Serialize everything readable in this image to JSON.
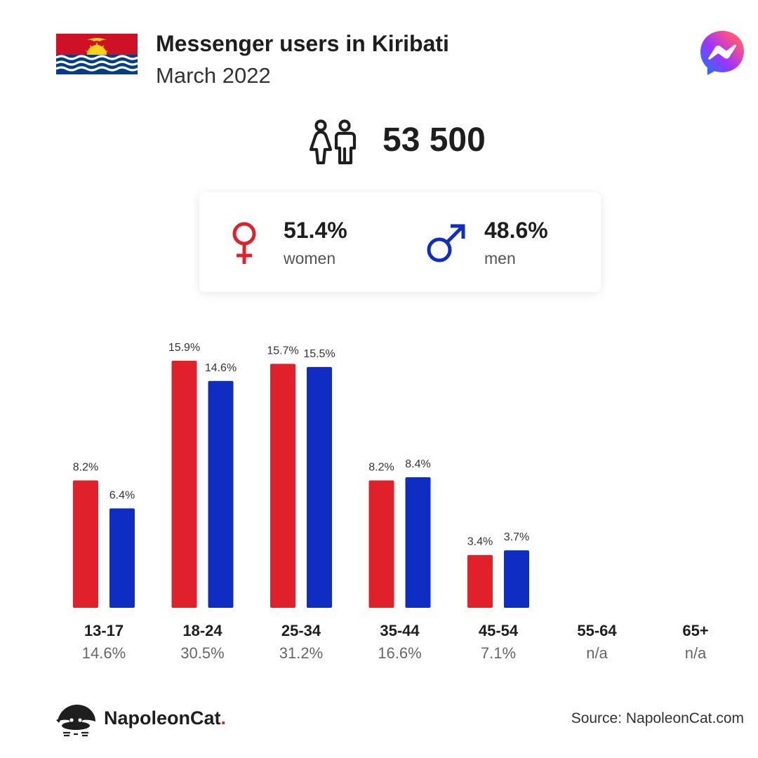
{
  "header": {
    "title": "Messenger users in Kiribati",
    "subtitle": "March 2022"
  },
  "summary": {
    "total_users": "53 500",
    "women_pct": "51.4%",
    "women_label": "women",
    "men_pct": "48.6%",
    "men_label": "men"
  },
  "colors": {
    "women": "#e0202a",
    "men": "#0f2dc3"
  },
  "icons": {
    "flag": "kiribati-flag-icon",
    "app": "messenger-logo-icon",
    "users": "users-couple-icon",
    "female": "female-symbol-icon",
    "male": "male-symbol-icon",
    "brand": "napoleoncat-logo-icon"
  },
  "chart_data": {
    "type": "bar",
    "categories": [
      "13-17",
      "18-24",
      "25-34",
      "35-44",
      "45-54",
      "55-64",
      "65+"
    ],
    "category_totals": [
      "14.6%",
      "30.5%",
      "31.2%",
      "16.6%",
      "7.1%",
      "n/a",
      "n/a"
    ],
    "series": [
      {
        "values": [
          8.2,
          15.9,
          15.7,
          8.2,
          3.4,
          null,
          null
        ],
        "labels": [
          "8.2%",
          "15.9%",
          "15.7%",
          "8.2%",
          "3.4%",
          "",
          ""
        ]
      },
      {
        "values": [
          6.4,
          14.6,
          15.5,
          8.4,
          3.7,
          null,
          null
        ],
        "labels": [
          "6.4%",
          "14.6%",
          "15.5%",
          "8.4%",
          "3.7%",
          "",
          ""
        ]
      }
    ],
    "ylim": [
      0,
      15.9
    ]
  },
  "footer": {
    "brand_name": "NapoleonCat",
    "brand_dot": ".",
    "source": "Source: NapoleonCat.com"
  }
}
